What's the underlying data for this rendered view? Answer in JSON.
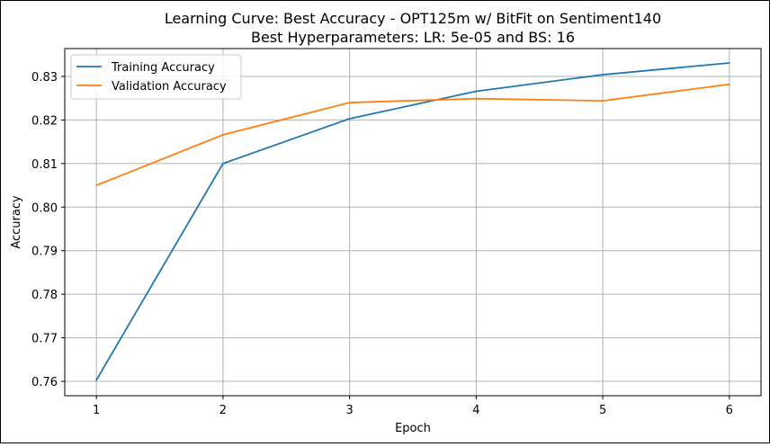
{
  "chart_data": {
    "type": "line",
    "title": "Learning Curve: Best Accuracy - OPT125m w/ BitFit on Sentiment140",
    "subtitle": "Best Hyperparameters: LR: 5e-05 and BS: 16",
    "xlabel": "Epoch",
    "ylabel": "Accuracy",
    "x": [
      1,
      2,
      3,
      4,
      5,
      6
    ],
    "xticks": [
      "1",
      "2",
      "3",
      "4",
      "5",
      "6"
    ],
    "yticks": [
      "0.76",
      "0.77",
      "0.78",
      "0.79",
      "0.80",
      "0.81",
      "0.82",
      "0.83"
    ],
    "xlim": [
      0.75,
      6.25
    ],
    "ylim": [
      0.7567,
      0.8364
    ],
    "grid": true,
    "legend_position": "top-left",
    "series": [
      {
        "name": "Training Accuracy",
        "color": "#1f77b4",
        "values": [
          0.7603,
          0.81,
          0.8203,
          0.8266,
          0.8304,
          0.8331
        ]
      },
      {
        "name": "Validation Accuracy",
        "color": "#ff7f0e",
        "values": [
          0.805,
          0.8166,
          0.824,
          0.8249,
          0.8244,
          0.8282
        ]
      }
    ]
  }
}
